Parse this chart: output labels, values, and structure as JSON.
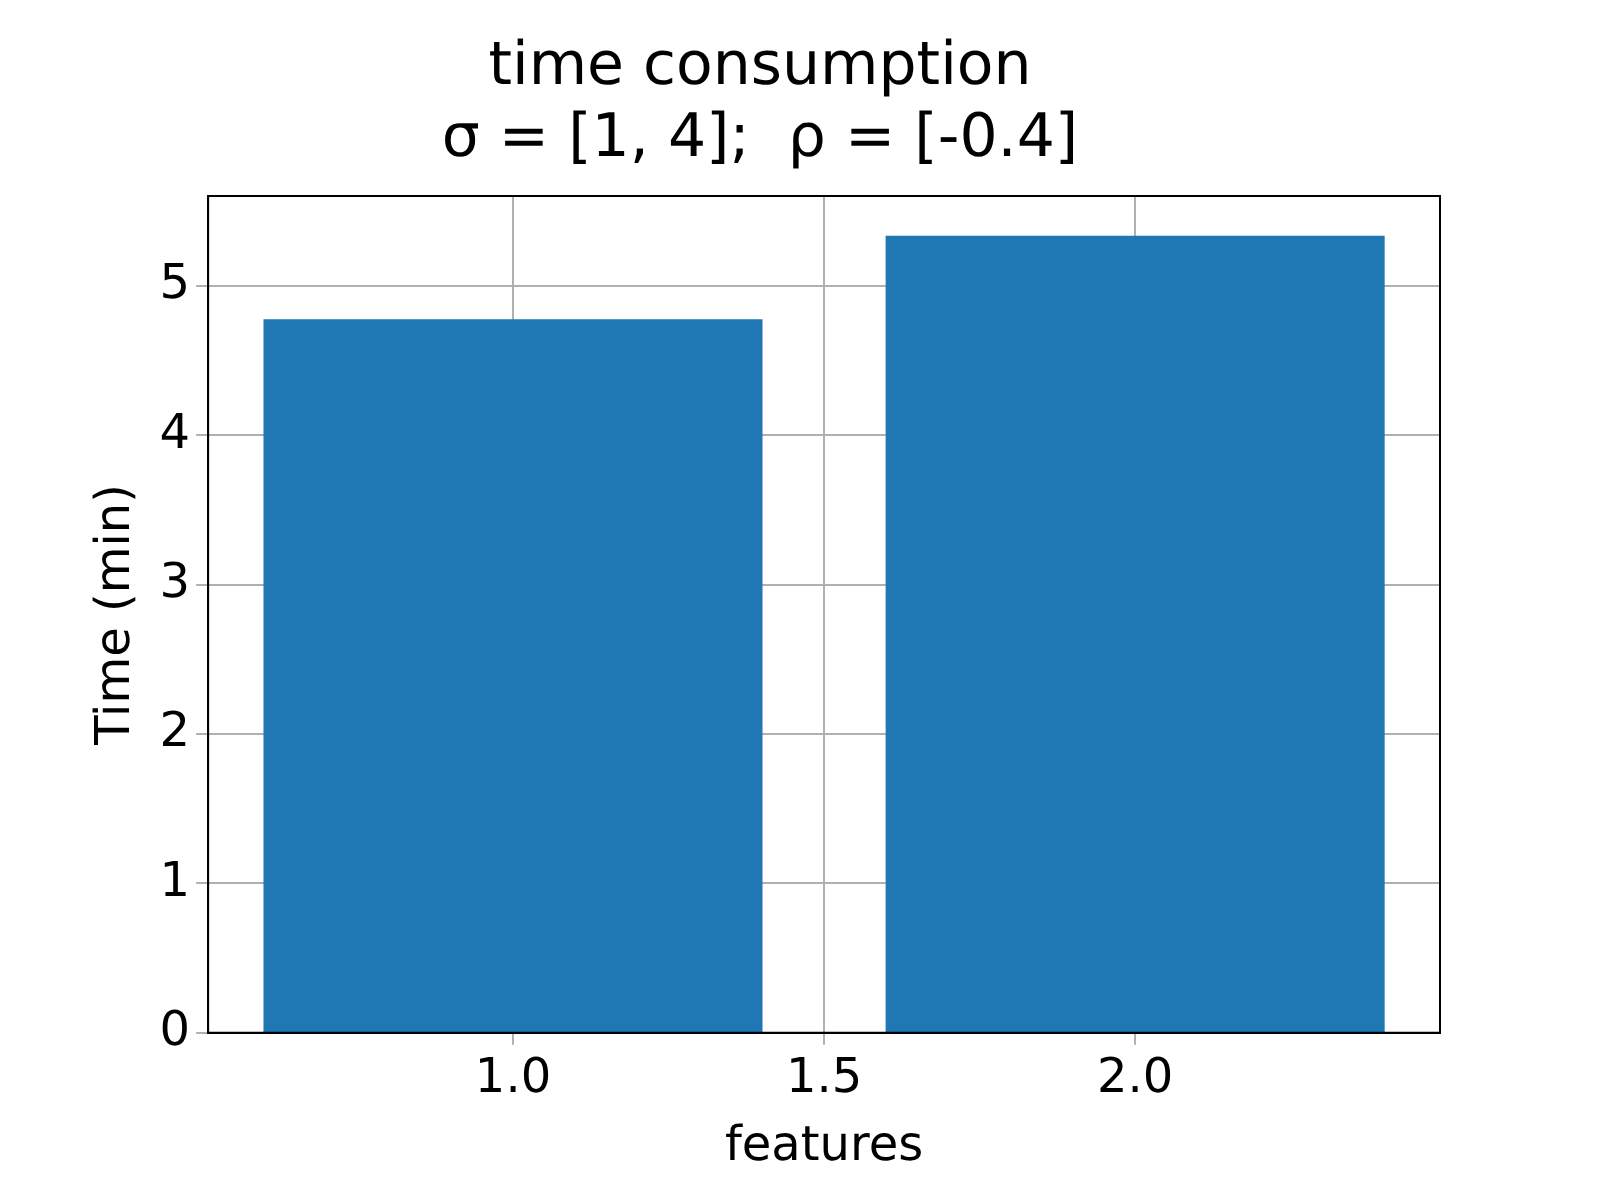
{
  "chart_data": {
    "type": "bar",
    "title": "time consumption\nσ = [1, 4];  ρ = [-0.4]",
    "xlabel": "features",
    "ylabel": "Time (min)",
    "x": [
      1,
      2
    ],
    "values": [
      4.77,
      5.33
    ],
    "color": "#1f77b4",
    "xlim": [
      0.51,
      2.49
    ],
    "xticks": [
      {
        "value": 1,
        "label": "1.0"
      },
      {
        "value": 1.5,
        "label": "1.5"
      },
      {
        "value": 2,
        "label": "2.0"
      }
    ],
    "ylim": [
      0,
      5.6
    ],
    "yticks": [
      0,
      1,
      2,
      3,
      4,
      5
    ],
    "grid": true
  }
}
